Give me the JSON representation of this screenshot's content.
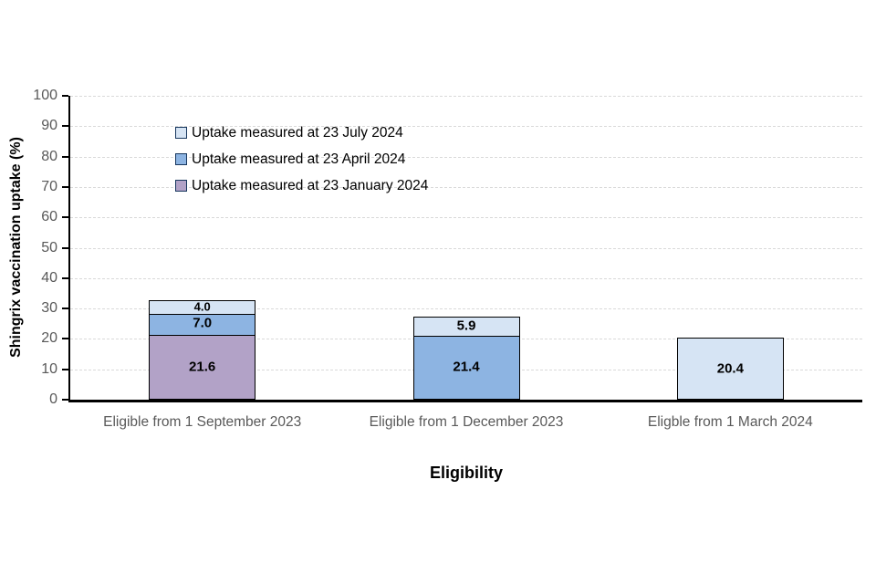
{
  "chart_data": {
    "type": "bar",
    "stacked": true,
    "title": "",
    "xlabel": "Eligibility",
    "ylabel": "Shingrix vaccination uptake (%)",
    "ylim": [
      0,
      100
    ],
    "ytick_step": 10,
    "grid": true,
    "gridline_color": "#d9d9d9",
    "axis_color": "#000000",
    "tick_label_color": "#595959",
    "bar_border_color": "#000000",
    "categories": [
      "Eligible from 1 September 2023",
      "Eligible from 1 December 2023",
      "Eligble from 1 March 2024"
    ],
    "series": [
      {
        "name": "Uptake measured at 23 January 2024",
        "color": "#b2a2c7",
        "values": [
          21.6,
          null,
          null
        ]
      },
      {
        "name": "Uptake measured at 23 April 2024",
        "color": "#8db4e2",
        "values": [
          7.0,
          21.4,
          null
        ]
      },
      {
        "name": "Uptake measured at 23 July 2024",
        "color": "#d6e4f4",
        "values": [
          4.0,
          5.9,
          20.4
        ]
      }
    ],
    "legend": {
      "position": "inside-top-left",
      "swatch_border": "#17375e",
      "entries": [
        {
          "label": "Uptake measured at 23 July 2024",
          "color": "#d6e4f4"
        },
        {
          "label": "Uptake measured at 23 April 2024",
          "color": "#8db4e2"
        },
        {
          "label": "Uptake measured at 23 January 2024",
          "color": "#b2a2c7"
        }
      ]
    }
  }
}
